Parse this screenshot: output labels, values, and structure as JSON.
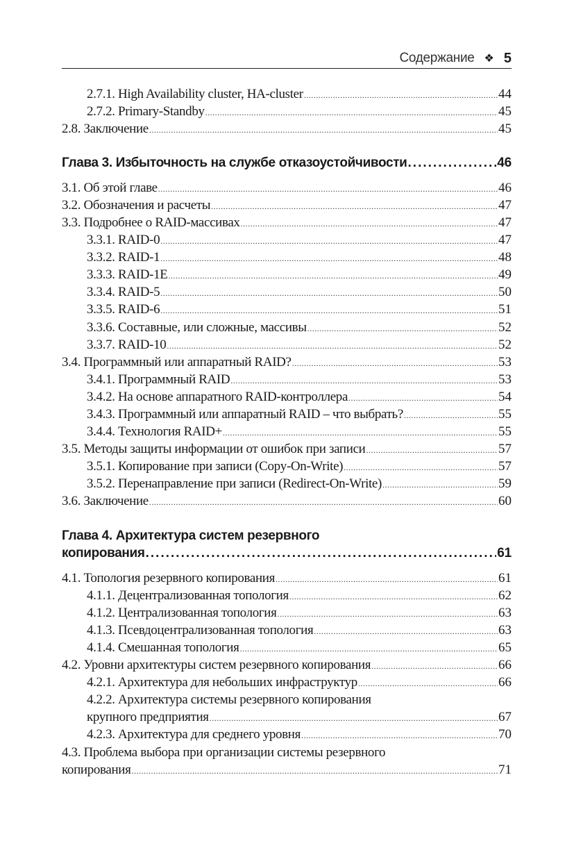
{
  "header": {
    "title": "Содержание",
    "ornament": "❖",
    "page": "5"
  },
  "block1": [
    {
      "level": 2,
      "text": "2.7.1. High Availability cluster, HA-cluster",
      "page": "44"
    },
    {
      "level": 2,
      "text": "2.7.2. Primary-Standby",
      "page": "45"
    },
    {
      "level": 1,
      "text": "2.8. Заключение",
      "page": "45"
    }
  ],
  "chapter3": {
    "text": "Глава 3. Избыточность на службе отказоустойчивости",
    "page": "46"
  },
  "block2": [
    {
      "level": 1,
      "text": "3.1. Об этой главе",
      "page": "46"
    },
    {
      "level": 1,
      "text": "3.2. Обозначения и расчеты",
      "page": "47"
    },
    {
      "level": 1,
      "text": "3.3. Подробнее о RAID-массивах",
      "page": "47"
    },
    {
      "level": 2,
      "text": "3.3.1. RAID-0",
      "page": "47"
    },
    {
      "level": 2,
      "text": "3.3.2. RAID-1",
      "page": "48"
    },
    {
      "level": 2,
      "text": "3.3.3. RAID-1E",
      "page": "49"
    },
    {
      "level": 2,
      "text": "3.3.4. RAID-5",
      "page": "50"
    },
    {
      "level": 2,
      "text": "3.3.5. RAID-6",
      "page": "51"
    },
    {
      "level": 2,
      "text": "3.3.6. Составные, или сложные, массивы",
      "page": "52"
    },
    {
      "level": 2,
      "text": "3.3.7. RAID-10",
      "page": "52"
    },
    {
      "level": 1,
      "text": "3.4. Программный или аппаратный RAID?",
      "page": "53"
    },
    {
      "level": 2,
      "text": "3.4.1. Программный RAID",
      "page": "53"
    },
    {
      "level": 2,
      "text": "3.4.2. На основе аппаратного RAID-контроллера",
      "page": "54"
    },
    {
      "level": 2,
      "text": "3.4.3. Программный или аппаратный RAID – что выбрать?",
      "page": "55"
    },
    {
      "level": 2,
      "text": "3.4.4. Технология RAID+",
      "page": "55"
    },
    {
      "level": 1,
      "text": "3.5. Методы защиты информации от ошибок при записи",
      "page": "57"
    },
    {
      "level": 2,
      "text": "3.5.1. Копирование при записи (Copy-On-Write)",
      "page": "57"
    },
    {
      "level": 2,
      "text": "3.5.2. Перенаправление при записи (Redirect-On-Write)",
      "page": "59"
    },
    {
      "level": 1,
      "text": "3.6. Заключение",
      "page": "60"
    }
  ],
  "chapter4": {
    "line1": "Глава 4. Архитектура систем резервного",
    "line2": "копирования",
    "page": "61"
  },
  "block3": [
    {
      "level": 1,
      "text": "4.1. Топология резервного копирования",
      "page": "61"
    },
    {
      "level": 2,
      "text": "4.1.1. Децентрализованная топология",
      "page": "62"
    },
    {
      "level": 2,
      "text": "4.1.2. Централизованная топология",
      "page": "63"
    },
    {
      "level": 2,
      "text": "4.1.3. Псевдоцентрализованная топология",
      "page": "63"
    },
    {
      "level": 2,
      "text": "4.1.4. Смешанная топология",
      "page": "65"
    },
    {
      "level": 1,
      "text": "4.2. Уровни архитектуры систем резервного копирования",
      "page": "66"
    },
    {
      "level": 2,
      "text": "4.2.1. Архитектура для небольших инфраструктур",
      "page": "66"
    },
    {
      "level": 2,
      "first": "4.2.2. Архитектура системы резервного копирования",
      "text": "крупного предприятия",
      "page": "67"
    },
    {
      "level": 2,
      "text": "4.2.3. Архитектура для среднего уровня",
      "page": "70"
    },
    {
      "level": 1,
      "first": "4.3. Проблема выбора при организации системы резервного",
      "text": "копирования",
      "page": "71"
    }
  ]
}
